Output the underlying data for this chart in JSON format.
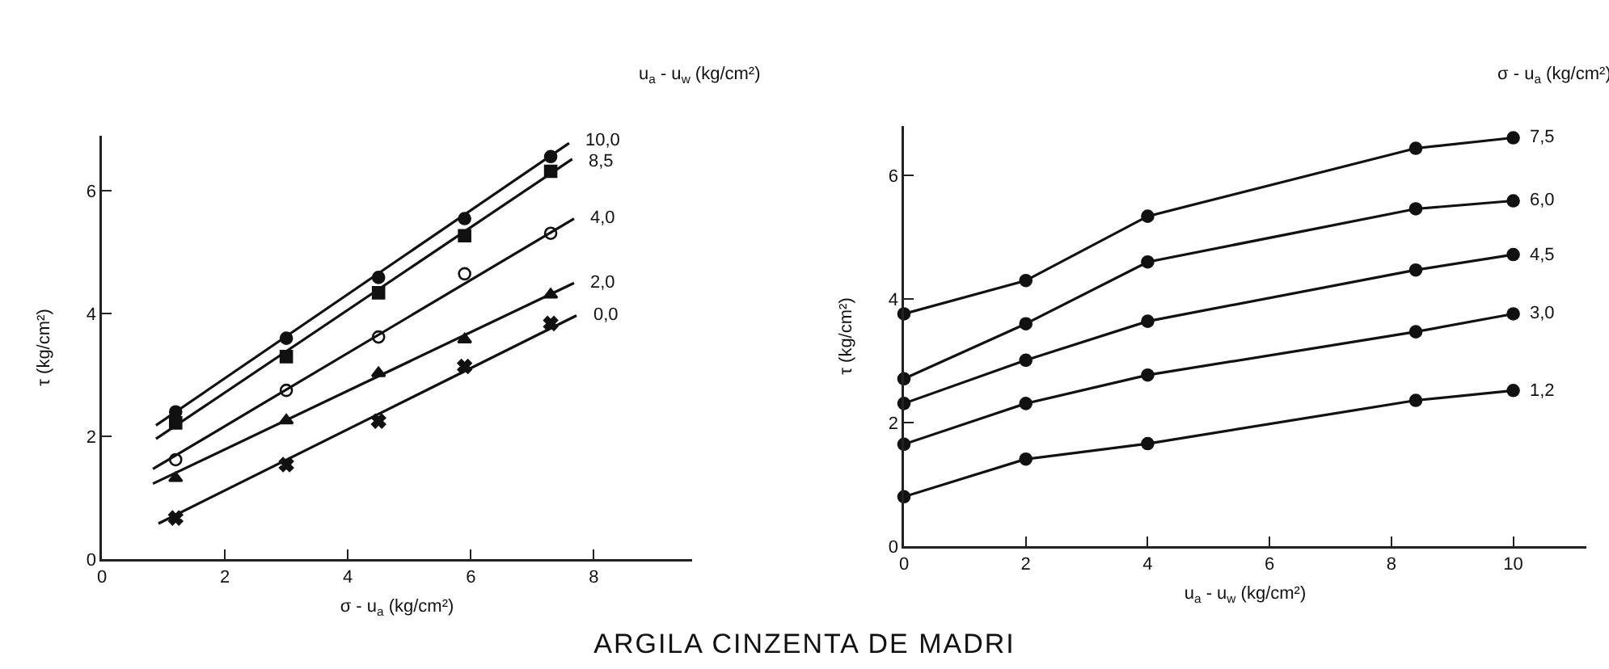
{
  "chart_data": [
    {
      "type": "scatter",
      "xlabel": "σ - u$_{a}$ (kg/cm²)",
      "ylabel": "τ (kg/cm²)",
      "legend_title": "u$_{a}$ - u$_{w}$ (kg/cm²)",
      "annotations": [
        "ARGILA CINZENTA DE MADRI"
      ],
      "x": [
        1.2,
        3.0,
        4.5,
        5.9,
        7.3
      ],
      "xlim": [
        0,
        9.6
      ],
      "ylim": [
        0,
        6.9
      ],
      "xticks": [
        0,
        2,
        4,
        6,
        8
      ],
      "yticks": [
        0,
        2,
        4,
        6
      ],
      "grid": false,
      "legend": false,
      "line_style": "solid",
      "series": [
        {
          "marker": "circle",
          "color": "#111111",
          "values": [
            2.4,
            3.6,
            4.59,
            5.55,
            6.56
          ]
        },
        {
          "marker": "square",
          "color": "#111111",
          "values": [
            2.22,
            3.3,
            4.34,
            5.27,
            6.32
          ]
        },
        {
          "marker": "circle-open",
          "color": "#111111",
          "values": [
            1.62,
            2.75,
            3.62,
            4.65,
            5.31
          ]
        },
        {
          "marker": "triangle",
          "color": "#111111",
          "values": [
            1.32,
            2.26,
            3.03,
            3.58,
            4.31
          ]
        },
        {
          "marker": "cross",
          "color": "#111111",
          "values": [
            0.67,
            1.54,
            2.25,
            3.14,
            3.84
          ]
        },
        {
          "type": "line",
          "name": "10,0",
          "marker": "none",
          "color": "#111111",
          "x": [
            0.88,
            7.6
          ],
          "values": [
            2.18,
            6.78
          ]
        },
        {
          "type": "line",
          "name": "8,5",
          "marker": "none",
          "color": "#111111",
          "x": [
            0.88,
            7.65
          ],
          "values": [
            1.96,
            6.52
          ]
        },
        {
          "type": "line",
          "name": "4,0",
          "marker": "none",
          "color": "#111111",
          "x": [
            0.83,
            7.68
          ],
          "values": [
            1.47,
            5.55
          ]
        },
        {
          "type": "line",
          "name": "2,0",
          "marker": "none",
          "color": "#111111",
          "x": [
            0.83,
            7.68
          ],
          "values": [
            1.23,
            4.5
          ]
        },
        {
          "type": "line",
          "name": "0,0",
          "marker": "none",
          "color": "#111111",
          "x": [
            0.92,
            7.72
          ],
          "values": [
            0.58,
            3.97
          ]
        }
      ]
    },
    {
      "type": "line",
      "xlabel": "u$_{a}$ - u$_{w}$ (kg/cm²)",
      "ylabel": "τ (kg/cm²)",
      "legend_title": "σ - u$_{a}$ (kg/cm²)",
      "x": [
        0,
        2,
        4,
        8.4,
        10
      ],
      "xlim": [
        0,
        11.2
      ],
      "ylim": [
        0,
        6.8
      ],
      "xticks": [
        0,
        2,
        4,
        6,
        8,
        10
      ],
      "yticks": [
        0,
        2,
        4,
        6
      ],
      "grid": false,
      "legend": false,
      "line_style": "solid",
      "marker": "circle",
      "series": [
        {
          "name": "7,5",
          "color": "#111111",
          "values": [
            3.76,
            4.3,
            5.34,
            6.44,
            6.61
          ]
        },
        {
          "name": "6,0",
          "color": "#111111",
          "values": [
            2.71,
            3.6,
            4.6,
            5.46,
            5.59
          ]
        },
        {
          "name": "4,5",
          "color": "#111111",
          "values": [
            2.31,
            3.01,
            3.64,
            4.47,
            4.72
          ]
        },
        {
          "name": "3,0",
          "color": "#111111",
          "values": [
            1.65,
            2.31,
            2.77,
            3.47,
            3.76
          ]
        },
        {
          "name": "1,2",
          "color": "#111111",
          "values": [
            0.8,
            1.41,
            1.66,
            2.36,
            2.52
          ]
        }
      ]
    }
  ]
}
